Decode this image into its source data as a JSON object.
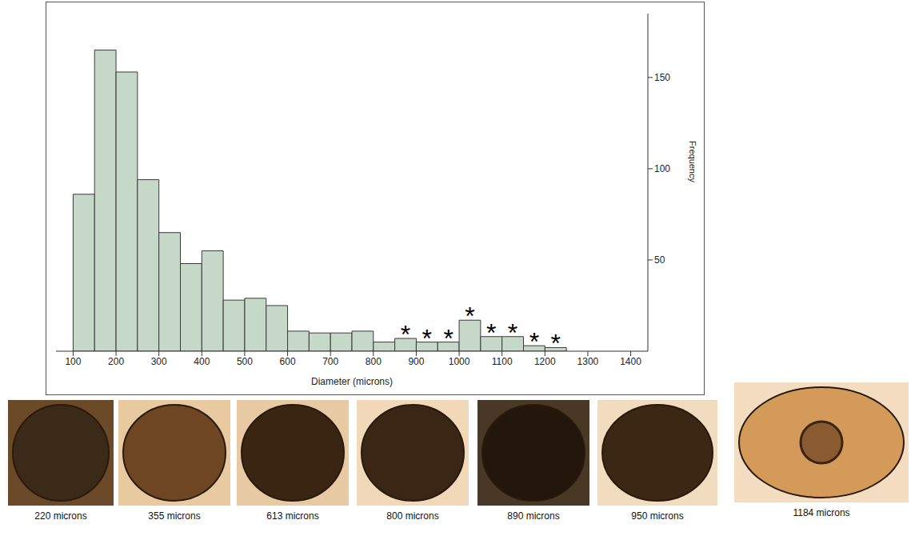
{
  "chart_data": {
    "type": "histogram",
    "bins": [
      100,
      150,
      200,
      250,
      300,
      350,
      400,
      450,
      500,
      550,
      600,
      650,
      700,
      750,
      800,
      850,
      900,
      950,
      1000,
      1050,
      1100,
      1150,
      1200,
      1250
    ],
    "values": [
      86,
      165,
      153,
      94,
      65,
      48,
      55,
      28,
      29,
      25,
      11,
      10,
      10,
      11,
      5,
      7,
      5,
      5,
      17,
      8,
      8,
      3,
      2
    ],
    "color": "#c6d9c8",
    "xlabel": "Diameter (microns)",
    "ylabel": "Frequency",
    "xlim": [
      60,
      1440
    ],
    "xticks": [
      100,
      200,
      300,
      400,
      500,
      600,
      700,
      800,
      900,
      1000,
      1100,
      1200,
      1300,
      1400
    ],
    "ylim": [
      0,
      185
    ],
    "yticks": [
      50,
      100,
      150
    ],
    "annotations": {
      "text": "*",
      "x": [
        875,
        925,
        975,
        1025,
        1075,
        1125,
        1175,
        1225
      ]
    }
  },
  "images": [
    {
      "caption": "220 microns"
    },
    {
      "caption": "355 microns"
    },
    {
      "caption": "613 microns"
    },
    {
      "caption": "800 microns"
    },
    {
      "caption": "890 microns"
    },
    {
      "caption": "950 microns"
    },
    {
      "caption": "1184 microns"
    }
  ]
}
